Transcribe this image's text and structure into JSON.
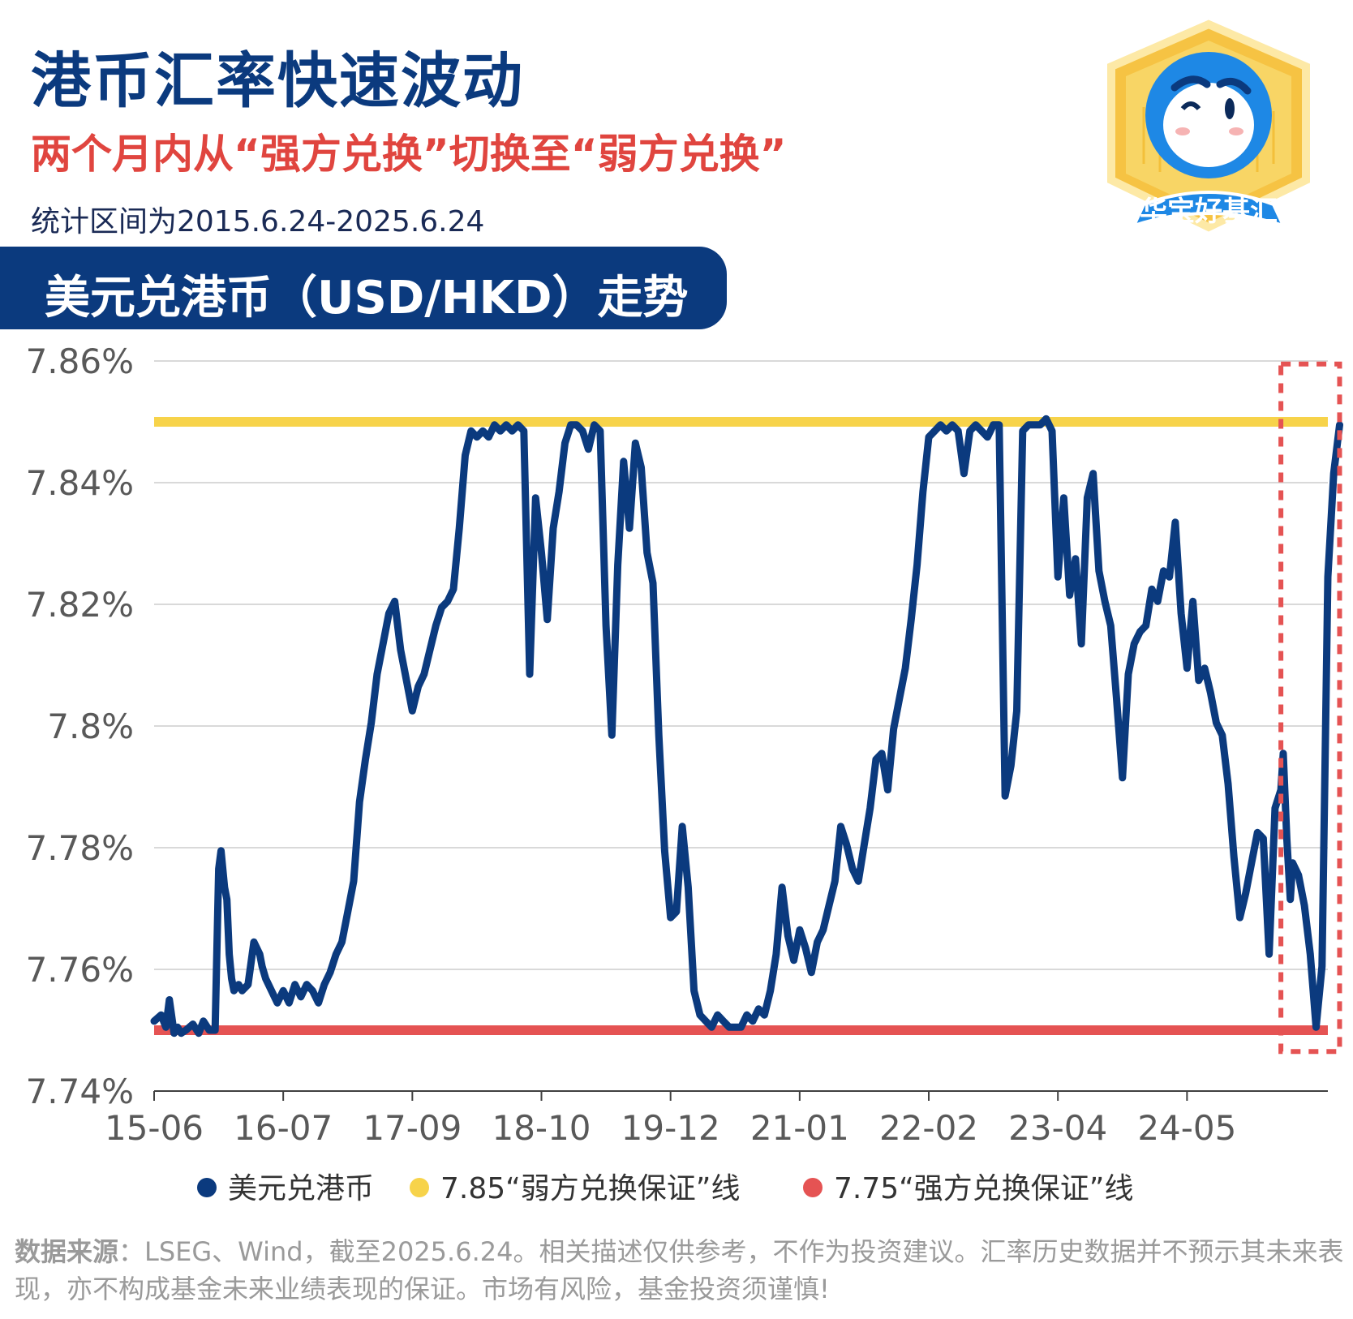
{
  "header": {
    "title": "港币汇率快速波动",
    "subtitle": "两个月内从“强方兑换”切换至“弱方兑换”",
    "period": "统计区间为2015.6.24-2025.6.24",
    "banner": "美元兑港币（USD/HKD）走势"
  },
  "logo": {
    "text": "华宝好基汇",
    "icon": "mascot-badge-icon"
  },
  "legend": [
    {
      "label": "美元兑港币",
      "color": "#0b3a7e"
    },
    {
      "label": "7.85“弱方兑换保证”线",
      "color": "#f7d34a"
    },
    {
      "label": "7.75“强方兑换保证”线",
      "color": "#e55353"
    }
  ],
  "source": {
    "label": "数据来源",
    "text": "：LSEG、Wind，截至2025.6.24。相关描述仅供参考，不作为投资建议。汇率历史数据并不预示其未来表现，亦不构成基金未来业绩表现的保证。市场有风险，基金投资须谨慎!"
  },
  "chart_data": {
    "type": "line",
    "xlim": [
      0,
      10
    ],
    "ylim": [
      7.74,
      7.86
    ],
    "y_ticks": [
      7.86,
      7.84,
      7.82,
      7.8,
      7.78,
      7.76,
      7.74
    ],
    "y_tick_labels": [
      "7.86%",
      "7.84%",
      "7.82%",
      "7.8%",
      "7.78%",
      "7.76%",
      "7.74%"
    ],
    "x_ticks": [
      0,
      1.1,
      2.2,
      3.3,
      4.4,
      5.5,
      6.6,
      7.7,
      8.8
    ],
    "x_tick_labels": [
      "15-06",
      "16-07",
      "17-09",
      "18-10",
      "19-12",
      "21-01",
      "22-02",
      "23-04",
      "24-05"
    ],
    "grid": "horizontal",
    "legend_position": "bottom",
    "reference_lines": [
      {
        "y": 7.85,
        "color": "#f7d34a"
      },
      {
        "y": 7.75,
        "color": "#e55353"
      }
    ],
    "highlight_box": {
      "x": [
        9.6,
        10.1
      ],
      "y": [
        7.7465,
        7.8595
      ],
      "color": "#e55353",
      "style": "dashed"
    },
    "series": [
      {
        "name": "美元兑港币",
        "color": "#0b3a7e",
        "x": [
          0,
          0.06,
          0.1,
          0.13,
          0.17,
          0.2,
          0.23,
          0.27,
          0.33,
          0.38,
          0.42,
          0.47,
          0.52,
          0.55,
          0.57,
          0.6,
          0.62,
          0.64,
          0.66,
          0.68,
          0.72,
          0.75,
          0.8,
          0.85,
          0.9,
          0.92,
          0.95,
          1,
          1.05,
          1.1,
          1.15,
          1.2,
          1.25,
          1.3,
          1.35,
          1.4,
          1.45,
          1.5,
          1.55,
          1.6,
          1.65,
          1.7,
          1.75,
          1.8,
          1.85,
          1.9,
          1.95,
          2.0,
          2.05,
          2.1,
          2.15,
          2.2,
          2.25,
          2.3,
          2.35,
          2.4,
          2.45,
          2.5,
          2.55,
          2.6,
          2.65,
          2.7,
          2.75,
          2.8,
          2.85,
          2.9,
          2.95,
          3.0,
          3.05,
          3.1,
          3.15,
          3.2,
          3.25,
          3.3,
          3.35,
          3.4,
          3.45,
          3.5,
          3.55,
          3.6,
          3.65,
          3.7,
          3.75,
          3.8,
          3.85,
          3.9,
          3.95,
          4.0,
          4.05,
          4.1,
          4.15,
          4.2,
          4.25,
          4.3,
          4.35,
          4.4,
          4.45,
          4.5,
          4.55,
          4.6,
          4.65,
          4.7,
          4.75,
          4.8,
          4.85,
          4.9,
          4.95,
          5.0,
          5.05,
          5.1,
          5.15,
          5.2,
          5.25,
          5.3,
          5.35,
          5.4,
          5.45,
          5.5,
          5.55,
          5.6,
          5.65,
          5.7,
          5.75,
          5.8,
          5.85,
          5.9,
          5.95,
          6.0,
          6.05,
          6.1,
          6.15,
          6.2,
          6.25,
          6.3,
          6.35,
          6.4,
          6.45,
          6.5,
          6.55,
          6.6,
          6.65,
          6.7,
          6.75,
          6.8,
          6.85,
          6.9,
          6.95,
          7.0,
          7.05,
          7.1,
          7.15,
          7.2,
          7.25,
          7.3,
          7.35,
          7.4,
          7.45,
          7.5,
          7.55,
          7.6,
          7.65,
          7.7,
          7.75,
          7.8,
          7.85,
          7.9,
          7.95,
          8.0,
          8.05,
          8.1,
          8.15,
          8.2,
          8.25,
          8.3,
          8.35,
          8.4,
          8.45,
          8.5,
          8.55,
          8.6,
          8.65,
          8.7,
          8.75,
          8.8,
          8.85,
          8.9,
          8.95,
          9.0,
          9.05,
          9.1,
          9.15,
          9.2,
          9.25,
          9.3,
          9.35,
          9.4,
          9.45,
          9.5,
          9.55,
          9.6,
          9.62,
          9.65,
          9.68,
          9.7,
          9.75,
          9.8,
          9.85,
          9.9,
          9.95,
          10.0,
          10.05,
          10.1
        ],
        "values": [
          7.7515,
          7.7525,
          7.7505,
          7.755,
          7.7495,
          7.7505,
          7.7495,
          7.75,
          7.751,
          7.7495,
          7.7515,
          7.75,
          7.75,
          7.7765,
          7.7795,
          7.7735,
          7.7715,
          7.7625,
          7.7585,
          7.7565,
          7.7575,
          7.7565,
          7.7575,
          7.7645,
          7.7625,
          7.7605,
          7.7585,
          7.7565,
          7.7545,
          7.7565,
          7.7545,
          7.7575,
          7.7555,
          7.7575,
          7.7565,
          7.7545,
          7.7575,
          7.7595,
          7.7625,
          7.7645,
          7.7695,
          7.7745,
          7.7875,
          7.7945,
          7.8005,
          7.8085,
          7.8135,
          7.8185,
          7.8205,
          7.8125,
          7.8075,
          7.8025,
          7.8065,
          7.8085,
          7.8125,
          7.8165,
          7.8195,
          7.8205,
          7.8225,
          7.8325,
          7.8445,
          7.8485,
          7.8475,
          7.8485,
          7.8475,
          7.8495,
          7.8485,
          7.8495,
          7.8485,
          7.8495,
          7.8485,
          7.8085,
          7.8375,
          7.8285,
          7.8175,
          7.8325,
          7.8385,
          7.8465,
          7.8495,
          7.8495,
          7.8485,
          7.8455,
          7.8495,
          7.8485,
          7.8165,
          7.7985,
          7.8265,
          7.8435,
          7.8325,
          7.8465,
          7.8425,
          7.8285,
          7.8235,
          7.7985,
          7.7795,
          7.7685,
          7.7695,
          7.7835,
          7.7735,
          7.7565,
          7.7525,
          7.7515,
          7.7505,
          7.7525,
          7.7515,
          7.7505,
          7.7505,
          7.7505,
          7.7525,
          7.7515,
          7.7535,
          7.7525,
          7.7565,
          7.7625,
          7.7735,
          7.7655,
          7.7615,
          7.7665,
          7.7635,
          7.7595,
          7.7645,
          7.7665,
          7.7705,
          7.7745,
          7.7835,
          7.7805,
          7.7765,
          7.7745,
          7.7805,
          7.7865,
          7.7945,
          7.7955,
          7.7895,
          7.7995,
          7.8045,
          7.8095,
          7.8175,
          7.8265,
          7.8385,
          7.8475,
          7.8485,
          7.8495,
          7.8485,
          7.8495,
          7.8485,
          7.8415,
          7.8485,
          7.8495,
          7.8485,
          7.8475,
          7.8495,
          7.8495,
          7.7885,
          7.7935,
          7.8025,
          7.8485,
          7.8495,
          7.8495,
          7.8495,
          7.8505,
          7.8485,
          7.8245,
          7.8375,
          7.8215,
          7.8275,
          7.8135,
          7.8375,
          7.8415,
          7.8255,
          7.8205,
          7.8165,
          7.8045,
          7.7915,
          7.8085,
          7.8135,
          7.8155,
          7.8165,
          7.8225,
          7.8205,
          7.8255,
          7.8245,
          7.8335,
          7.8185,
          7.8095,
          7.8205,
          7.8075,
          7.8095,
          7.8055,
          7.8005,
          7.7985,
          7.7905,
          7.7785,
          7.7685,
          7.7725,
          7.7775,
          7.7825,
          7.7815,
          7.7625,
          7.7865,
          7.7895,
          7.7955,
          7.7815,
          7.7715,
          7.7775,
          7.7755,
          7.7705,
          7.7625,
          7.7505,
          7.7605,
          7.8245,
          7.8415,
          7.8495
        ]
      }
    ]
  }
}
